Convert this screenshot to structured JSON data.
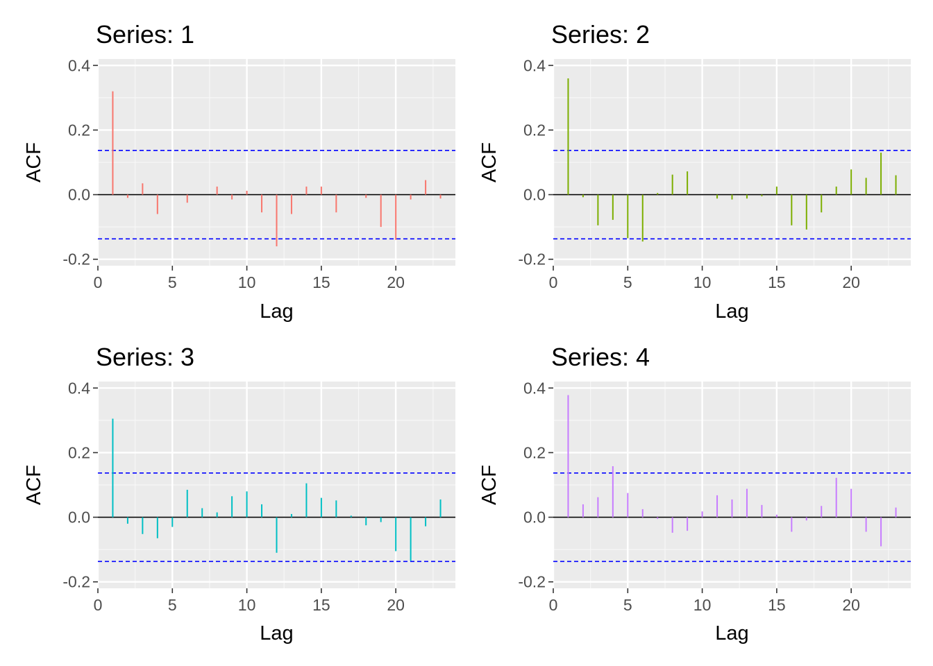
{
  "chart_data": [
    {
      "type": "bar",
      "title": "Series: 1",
      "xlabel": "Lag",
      "ylabel": "ACF",
      "color": "#F8766D",
      "lags": [
        1,
        2,
        3,
        4,
        5,
        6,
        7,
        8,
        9,
        10,
        11,
        12,
        13,
        14,
        15,
        16,
        17,
        18,
        19,
        20,
        21,
        22,
        23
      ],
      "values": [
        0.32,
        -0.01,
        0.035,
        -0.06,
        0.0,
        -0.025,
        0.0,
        0.025,
        -0.015,
        0.012,
        -0.055,
        -0.16,
        -0.06,
        0.025,
        0.025,
        -0.055,
        0.0,
        -0.01,
        -0.1,
        -0.14,
        -0.015,
        0.045,
        -0.012
      ],
      "ci": 0.137,
      "xlim": [
        0,
        24
      ],
      "ylim": [
        -0.22,
        0.42
      ],
      "xticks": [
        0,
        5,
        10,
        15,
        20
      ],
      "xtick_labels": [
        "0",
        "5",
        "10",
        "15",
        "20"
      ],
      "yticks": [
        -0.2,
        0.0,
        0.2,
        0.4
      ],
      "ytick_labels": [
        "-0.2",
        "0.0",
        "0.2",
        "0.4"
      ],
      "grid": true,
      "legend": "none"
    },
    {
      "type": "bar",
      "title": "Series: 2",
      "xlabel": "Lag",
      "ylabel": "ACF",
      "color": "#7CAE00",
      "lags": [
        1,
        2,
        3,
        4,
        5,
        6,
        7,
        8,
        9,
        10,
        11,
        12,
        13,
        14,
        15,
        16,
        17,
        18,
        19,
        20,
        21,
        22,
        23
      ],
      "values": [
        0.36,
        -0.008,
        -0.095,
        -0.078,
        -0.135,
        -0.145,
        0.005,
        0.062,
        0.072,
        0.0,
        -0.012,
        -0.015,
        -0.012,
        -0.005,
        0.025,
        -0.095,
        -0.108,
        -0.055,
        0.025,
        0.078,
        0.052,
        0.13,
        0.06
      ],
      "ci": 0.137,
      "xlim": [
        0,
        24
      ],
      "ylim": [
        -0.22,
        0.42
      ],
      "xticks": [
        0,
        5,
        10,
        15,
        20
      ],
      "xtick_labels": [
        "0",
        "5",
        "10",
        "15",
        "20"
      ],
      "yticks": [
        -0.2,
        0.0,
        0.2,
        0.4
      ],
      "ytick_labels": [
        "-0.2",
        "0.0",
        "0.2",
        "0.4"
      ],
      "grid": true,
      "legend": "none"
    },
    {
      "type": "bar",
      "title": "Series: 3",
      "xlabel": "Lag",
      "ylabel": "ACF",
      "color": "#00BFC4",
      "lags": [
        1,
        2,
        3,
        4,
        5,
        6,
        7,
        8,
        9,
        10,
        11,
        12,
        13,
        14,
        15,
        16,
        17,
        18,
        19,
        20,
        21,
        22,
        23
      ],
      "values": [
        0.305,
        -0.02,
        -0.052,
        -0.065,
        -0.03,
        0.085,
        0.028,
        0.015,
        0.065,
        0.08,
        0.04,
        -0.11,
        0.01,
        0.105,
        0.06,
        0.052,
        0.005,
        -0.025,
        -0.015,
        -0.105,
        -0.135,
        -0.028,
        0.055
      ],
      "ci": 0.137,
      "xlim": [
        0,
        24
      ],
      "ylim": [
        -0.22,
        0.42
      ],
      "xticks": [
        0,
        5,
        10,
        15,
        20
      ],
      "xtick_labels": [
        "0",
        "5",
        "10",
        "15",
        "20"
      ],
      "yticks": [
        -0.2,
        0.0,
        0.2,
        0.4
      ],
      "ytick_labels": [
        "-0.2",
        "0.0",
        "0.2",
        "0.4"
      ],
      "grid": true,
      "legend": "none"
    },
    {
      "type": "bar",
      "title": "Series: 4",
      "xlabel": "Lag",
      "ylabel": "ACF",
      "color": "#C77CFF",
      "lags": [
        1,
        2,
        3,
        4,
        5,
        6,
        7,
        8,
        9,
        10,
        11,
        12,
        13,
        14,
        15,
        16,
        17,
        18,
        19,
        20,
        21,
        22,
        23
      ],
      "values": [
        0.378,
        0.04,
        0.062,
        0.158,
        0.075,
        0.025,
        -0.005,
        -0.048,
        -0.042,
        0.018,
        0.068,
        0.055,
        0.088,
        0.038,
        0.008,
        -0.045,
        -0.01,
        0.035,
        0.122,
        0.088,
        -0.045,
        -0.09,
        0.03
      ],
      "ci": 0.137,
      "xlim": [
        0,
        24
      ],
      "ylim": [
        -0.22,
        0.42
      ],
      "xticks": [
        0,
        5,
        10,
        15,
        20
      ],
      "xtick_labels": [
        "0",
        "5",
        "10",
        "15",
        "20"
      ],
      "yticks": [
        -0.2,
        0.0,
        0.2,
        0.4
      ],
      "ytick_labels": [
        "-0.2",
        "0.0",
        "0.2",
        "0.4"
      ],
      "grid": true,
      "legend": "none"
    }
  ]
}
